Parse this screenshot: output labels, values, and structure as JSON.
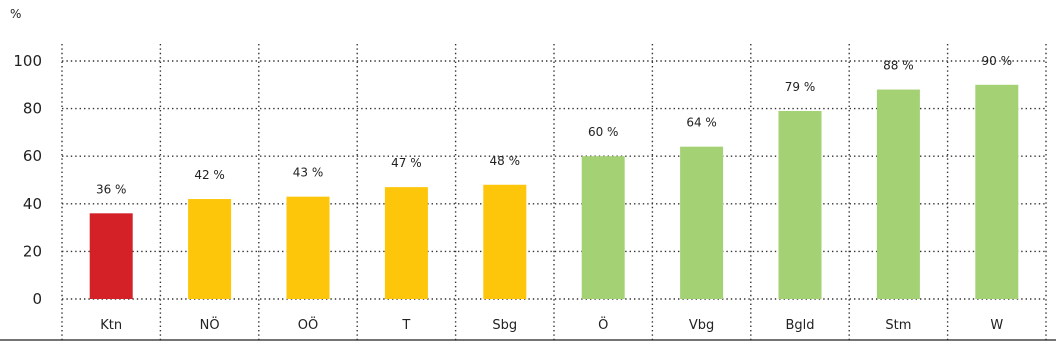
{
  "chart_data": {
    "type": "bar",
    "ylabel": "%",
    "ylim": [
      0,
      100
    ],
    "yticks": [
      0,
      20,
      40,
      60,
      80,
      100
    ],
    "grid": true,
    "categories": [
      "Ktn",
      "NÖ",
      "OÖ",
      "T",
      "Sbg",
      "Ö",
      "Vbg",
      "Bgld",
      "Stm",
      "W"
    ],
    "values": [
      36,
      42,
      43,
      47,
      48,
      60,
      64,
      79,
      88,
      90
    ],
    "data_labels": [
      "36 %",
      "42 %",
      "43 %",
      "47 %",
      "48 %",
      "60 %",
      "64 %",
      "79 %",
      "88 %",
      "90 %"
    ],
    "bar_colors": [
      "#d42027",
      "#fdc60a",
      "#fdc60a",
      "#fdc60a",
      "#fdc60a",
      "#a3d174",
      "#a3d174",
      "#a3d174",
      "#a3d174",
      "#a3d174"
    ]
  }
}
